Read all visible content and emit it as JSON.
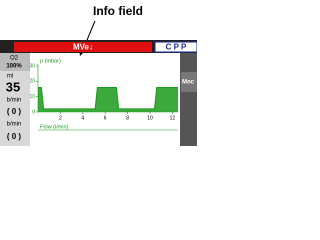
{
  "annotation": "Info field",
  "alarm_bar": {
    "message": "MVe↓",
    "mode": "C P P"
  },
  "left_panel": {
    "o2_label": "O2",
    "o2_value": "100%",
    "unit_1": "ml",
    "value_1": "35",
    "unit_2": "b/min",
    "value_2": "( 0 )",
    "unit_3": "b/min",
    "value_3": "( 0 )"
  },
  "right_panel": {
    "button": "Moc"
  },
  "waveform": {
    "label": "p (mbar)",
    "flow_label": "Flow (l/min)",
    "color": "#1a9a1a",
    "ylim": [
      0,
      30
    ],
    "yticks": [
      0,
      10,
      20,
      30
    ],
    "xlim": [
      0,
      12.5
    ],
    "xticks": [
      2,
      4,
      6,
      8,
      10,
      12
    ],
    "x": [
      0,
      0.3,
      0.5,
      5.1,
      5.3,
      7.0,
      7.2,
      10.4,
      10.6,
      12.5
    ],
    "values": [
      16,
      16,
      2,
      2,
      16,
      16,
      2,
      2,
      16,
      16
    ]
  }
}
